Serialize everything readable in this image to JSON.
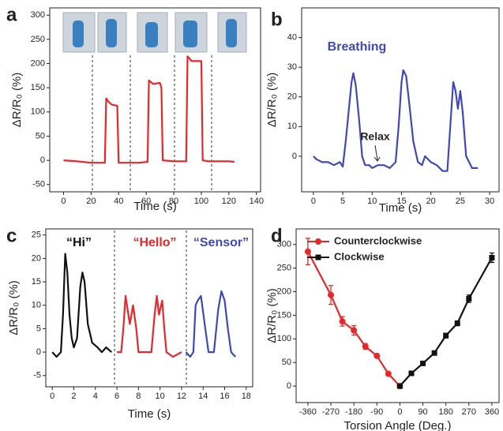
{
  "chart_data": [
    {
      "type": "line",
      "panel": "a",
      "xlabel": "Time (s)",
      "ylabel": "ΔR/R₀ (%)",
      "xlim": [
        -10,
        143
      ],
      "ylim": [
        -65,
        315
      ],
      "xticks": [
        0,
        20,
        40,
        60,
        80,
        100,
        120,
        140
      ],
      "yticks": [
        -50,
        0,
        50,
        100,
        150,
        200,
        250,
        300
      ],
      "series": [
        {
          "color": "#e8272a",
          "x": [
            0,
            10,
            20,
            30,
            31,
            33,
            35,
            39,
            40,
            50,
            55,
            61,
            62,
            65,
            70,
            71,
            72,
            80,
            89,
            90,
            93,
            100,
            101,
            105,
            120,
            124
          ],
          "values": [
            0,
            -2,
            -5,
            -5,
            128,
            120,
            115,
            113,
            -5,
            -5,
            -5,
            -3,
            165,
            158,
            160,
            150,
            0,
            -2,
            -2,
            215,
            205,
            205,
            0,
            -2,
            -2,
            -3
          ]
        }
      ]
    },
    {
      "type": "line",
      "panel": "b",
      "xlabel": "Time (s)",
      "ylabel": "ΔR/R₀ (%)",
      "xlim": [
        -2,
        31.6
      ],
      "ylim": [
        -12,
        50
      ],
      "xticks": [
        0,
        5,
        10,
        15,
        20,
        25,
        30
      ],
      "yticks": [
        0,
        10,
        20,
        30,
        40
      ],
      "annotations": [
        "Breathing",
        "Relax"
      ],
      "series": [
        {
          "color": "#3f48b5",
          "x": [
            0,
            0.5,
            1.5,
            2.5,
            3.5,
            4.5,
            5,
            5.5,
            6,
            6.5,
            6.8,
            7.2,
            7.8,
            8.3,
            8.8,
            9.5,
            10,
            11,
            12,
            13,
            14,
            14.5,
            15,
            15.3,
            15.8,
            16.3,
            17,
            17.8,
            18.5,
            19,
            20,
            21,
            22,
            22.8,
            23.3,
            23.8,
            24.2,
            24.6,
            25,
            25.4,
            26,
            26.5,
            27,
            28
          ],
          "values": [
            0,
            -1,
            -2,
            -2,
            -3,
            -2,
            -3.5,
            5,
            15,
            25,
            28,
            24,
            12,
            0,
            -3,
            -3,
            -4,
            -3,
            -3,
            -4,
            -2,
            10,
            25,
            29,
            27,
            18,
            5,
            -2,
            -3,
            0,
            -2,
            -3,
            -5,
            -5,
            10,
            25,
            22,
            16,
            22,
            15,
            0,
            -2,
            -4,
            -4
          ]
        }
      ]
    },
    {
      "type": "line",
      "panel": "c",
      "xlabel": "Time (s)",
      "ylabel": "ΔR/R₀ (%)",
      "xlim": [
        -0.6,
        18.6
      ],
      "ylim": [
        -7.4,
        26.3
      ],
      "xticks": [
        0,
        2,
        4,
        6,
        8,
        10,
        12,
        14,
        16,
        18
      ],
      "yticks": [
        -5,
        0,
        5,
        10,
        15,
        20,
        25
      ],
      "series": [
        {
          "name": "“Hi”",
          "color": "#111111",
          "x": [
            0,
            0.4,
            0.8,
            1.0,
            1.2,
            1.4,
            1.6,
            1.8,
            2.0,
            2.3,
            2.6,
            2.8,
            3.0,
            3.3,
            3.7,
            4.2,
            4.6,
            5.0,
            5.5
          ],
          "values": [
            0,
            -1,
            0,
            8,
            21,
            17,
            8,
            3,
            1,
            3,
            14,
            17,
            15,
            6,
            2,
            1,
            0,
            1,
            0
          ]
        },
        {
          "name": "“Hello”",
          "color": "#e8272a",
          "x": [
            6.0,
            6.4,
            6.6,
            6.8,
            7.0,
            7.2,
            7.5,
            7.8,
            8.0,
            8.5,
            9.2,
            9.5,
            9.7,
            9.9,
            10.2,
            10.4,
            10.6,
            11.2,
            12
          ],
          "values": [
            0,
            0,
            5,
            12,
            9,
            6,
            10,
            5,
            0,
            0,
            0,
            8,
            12,
            8,
            11,
            5,
            0,
            -1,
            0
          ]
        },
        {
          "name": "“Sensor”",
          "color": "#3f48b5",
          "x": [
            12.4,
            12.8,
            13.1,
            13.3,
            13.5,
            13.8,
            14.2,
            14.5,
            15,
            15.4,
            15.7,
            16,
            16.3,
            16.6,
            17
          ],
          "values": [
            0,
            -1,
            0,
            10,
            11,
            12,
            5,
            0,
            0,
            9,
            13,
            11,
            5,
            0,
            -1
          ]
        }
      ]
    },
    {
      "type": "errorline",
      "panel": "d",
      "xlabel": "Torsion Angle (Deg.)",
      "ylabel": "ΔR/R₀ (%)",
      "xlim": [
        -406,
        388
      ],
      "ylim": [
        -35,
        333
      ],
      "xticks": [
        -360,
        -270,
        -180,
        -90,
        0,
        90,
        180,
        270,
        360
      ],
      "yticks": [
        0,
        50,
        100,
        150,
        200,
        250,
        300
      ],
      "series": [
        {
          "name": "Counterclockwise",
          "color": "#e8272a",
          "marker": "circle",
          "x": [
            -360,
            -270,
            -225,
            -180,
            -135,
            -90,
            -45,
            0
          ],
          "values": [
            285,
            193,
            137,
            118,
            84,
            64,
            26,
            0
          ],
          "errors": [
            28,
            20,
            10,
            10,
            6,
            4,
            4,
            0
          ]
        },
        {
          "name": "Clockwise",
          "color": "#111111",
          "marker": "square",
          "x": [
            0,
            45,
            90,
            135,
            180,
            225,
            270,
            360
          ],
          "values": [
            0,
            27,
            48,
            70,
            107,
            133,
            185,
            272
          ],
          "errors": [
            0,
            3,
            4,
            4,
            5,
            5,
            8,
            10
          ]
        }
      ]
    }
  ]
}
